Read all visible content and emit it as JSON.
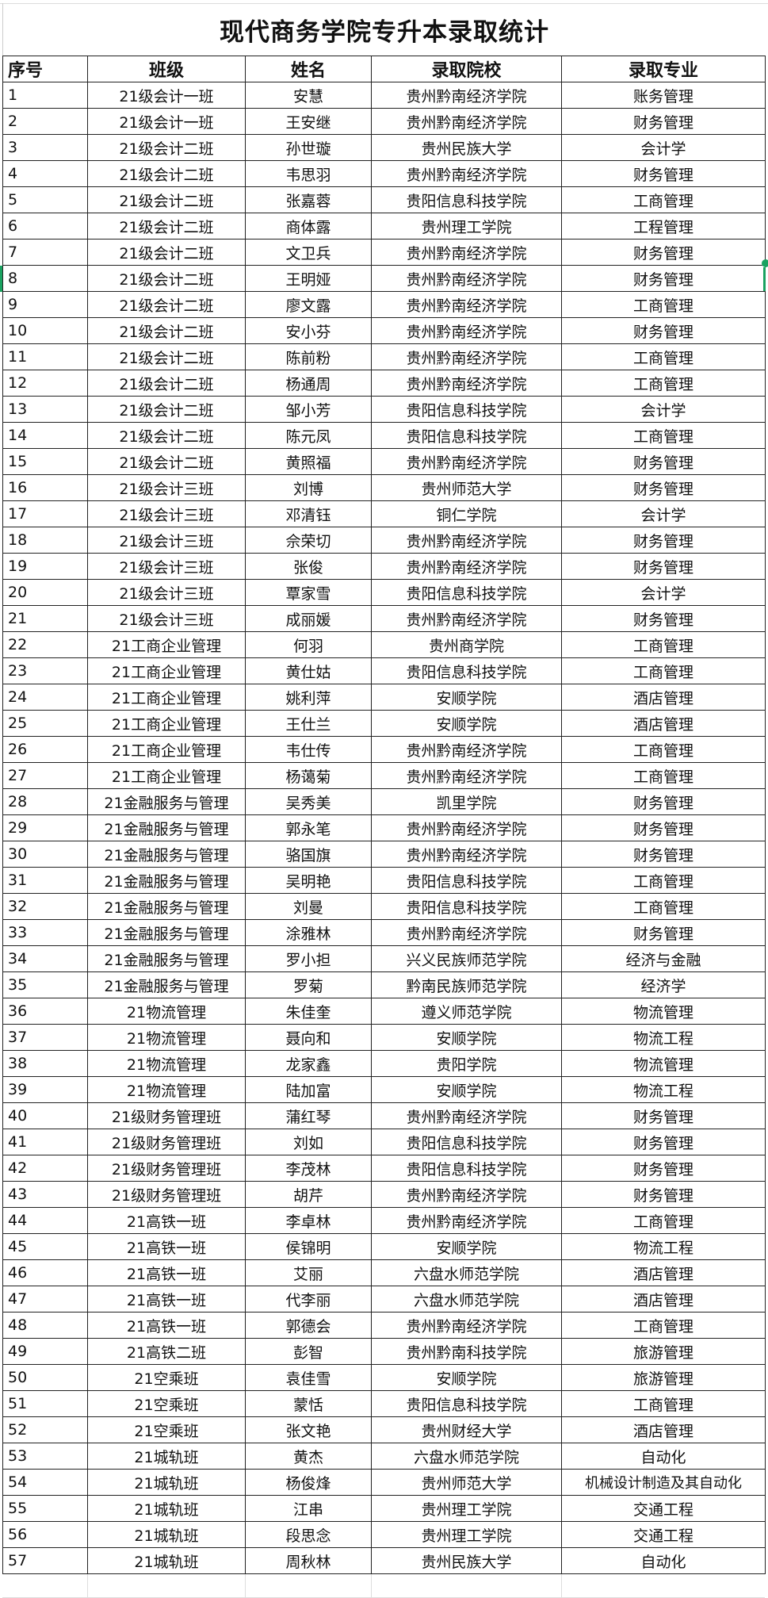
{
  "title": "现代商务学院专升本录取统计",
  "headers": [
    "序号",
    "班级",
    "姓名",
    "录取院校",
    "录取专业"
  ],
  "accent_color": "#1aa260",
  "rows": [
    [
      "1",
      "21级会计一班",
      "安慧",
      "贵州黔南经济学院",
      "账务管理"
    ],
    [
      "2",
      "21级会计一班",
      "王安继",
      "贵州黔南经济学院",
      "财务管理"
    ],
    [
      "3",
      "21级会计二班",
      "孙世璇",
      "贵州民族大学",
      "会计学"
    ],
    [
      "4",
      "21级会计二班",
      "韦思羽",
      "贵州黔南经济学院",
      "财务管理"
    ],
    [
      "5",
      "21级会计二班",
      "张嘉蓉",
      "贵阳信息科技学院",
      "工商管理"
    ],
    [
      "6",
      "21级会计二班",
      "商体露",
      "贵州理工学院",
      "工程管理"
    ],
    [
      "7",
      "21级会计二班",
      "文卫兵",
      "贵州黔南经济学院",
      "财务管理"
    ],
    [
      "8",
      "21级会计二班",
      "王明娅",
      "贵州黔南经济学院",
      "财务管理"
    ],
    [
      "9",
      "21级会计二班",
      "廖文露",
      "贵州黔南经济学院",
      "工商管理"
    ],
    [
      "10",
      "21级会计二班",
      "安小芬",
      "贵州黔南经济学院",
      "财务管理"
    ],
    [
      "11",
      "21级会计二班",
      "陈前粉",
      "贵州黔南经济学院",
      "工商管理"
    ],
    [
      "12",
      "21级会计二班",
      "杨通周",
      "贵州黔南经济学院",
      "工商管理"
    ],
    [
      "13",
      "21级会计二班",
      "邹小芳",
      "贵阳信息科技学院",
      "会计学"
    ],
    [
      "14",
      "21级会计二班",
      "陈元凤",
      "贵阳信息科技学院",
      "工商管理"
    ],
    [
      "15",
      "21级会计二班",
      "黄照福",
      "贵州黔南经济学院",
      "财务管理"
    ],
    [
      "16",
      "21级会计三班",
      "刘博",
      "贵州师范大学",
      "财务管理"
    ],
    [
      "17",
      "21级会计三班",
      "邓清钰",
      "铜仁学院",
      "会计学"
    ],
    [
      "18",
      "21级会计三班",
      "佘荣切",
      "贵州黔南经济学院",
      "财务管理"
    ],
    [
      "19",
      "21级会计三班",
      "张俊",
      "贵州黔南经济学院",
      "财务管理"
    ],
    [
      "20",
      "21级会计三班",
      "覃家雪",
      "贵阳信息科技学院",
      "会计学"
    ],
    [
      "21",
      "21级会计三班",
      "成丽媛",
      "贵州黔南经济学院",
      "财务管理"
    ],
    [
      "22",
      "21工商企业管理",
      "何羽",
      "贵州商学院",
      "工商管理"
    ],
    [
      "23",
      "21工商企业管理",
      "黄仕姑",
      "贵阳信息科技学院",
      "工商管理"
    ],
    [
      "24",
      "21工商企业管理",
      "姚利萍",
      "安顺学院",
      "酒店管理"
    ],
    [
      "25",
      "21工商企业管理",
      "王仕兰",
      "安顺学院",
      "酒店管理"
    ],
    [
      "26",
      "21工商企业管理",
      "韦仕传",
      "贵州黔南经济学院",
      "工商管理"
    ],
    [
      "27",
      "21工商企业管理",
      "杨蔼菊",
      "贵州黔南经济学院",
      "工商管理"
    ],
    [
      "28",
      "21金融服务与管理",
      "吴秀美",
      "凯里学院",
      "财务管理"
    ],
    [
      "29",
      "21金融服务与管理",
      "郭永笔",
      "贵州黔南经济学院",
      "财务管理"
    ],
    [
      "30",
      "21金融服务与管理",
      "骆国旗",
      "贵州黔南经济学院",
      "财务管理"
    ],
    [
      "31",
      "21金融服务与管理",
      "吴明艳",
      "贵阳信息科技学院",
      "工商管理"
    ],
    [
      "32",
      "21金融服务与管理",
      "刘曼",
      "贵阳信息科技学院",
      "工商管理"
    ],
    [
      "33",
      "21金融服务与管理",
      "涂雅林",
      "贵州黔南经济学院",
      "财务管理"
    ],
    [
      "34",
      "21金融服务与管理",
      "罗小担",
      "兴义民族师范学院",
      "经济与金融"
    ],
    [
      "35",
      "21金融服务与管理",
      "罗菊",
      "黔南民族师范学院",
      "经济学"
    ],
    [
      "36",
      "21物流管理",
      "朱佳奎",
      "遵义师范学院",
      "物流管理"
    ],
    [
      "37",
      "21物流管理",
      "聂向和",
      "安顺学院",
      "物流工程"
    ],
    [
      "38",
      "21物流管理",
      "龙家鑫",
      "贵阳学院",
      "物流管理"
    ],
    [
      "39",
      "21物流管理",
      "陆加富",
      "安顺学院",
      "物流工程"
    ],
    [
      "40",
      "21级财务管理班",
      "蒲红琴",
      "贵州黔南经济学院",
      "财务管理"
    ],
    [
      "41",
      "21级财务管理班",
      "刘如",
      "贵阳信息科技学院",
      "财务管理"
    ],
    [
      "42",
      "21级财务管理班",
      "李茂林",
      "贵阳信息科技学院",
      "财务管理"
    ],
    [
      "43",
      "21级财务管理班",
      "胡芹",
      "贵州黔南经济学院",
      "财务管理"
    ],
    [
      "44",
      "21高铁一班",
      "李卓林",
      "贵州黔南经济学院",
      "工商管理"
    ],
    [
      "45",
      "21高铁一班",
      "侯锦明",
      "安顺学院",
      "物流工程"
    ],
    [
      "46",
      "21高铁一班",
      "艾丽",
      "六盘水师范学院",
      "酒店管理"
    ],
    [
      "47",
      "21高铁一班",
      "代李丽",
      "六盘水师范学院",
      "酒店管理"
    ],
    [
      "48",
      "21高铁一班",
      "郭德会",
      "贵州黔南经济学院",
      "工商管理"
    ],
    [
      "49",
      "21高铁二班",
      "彭智",
      "贵州黔南科技学院",
      "旅游管理"
    ],
    [
      "50",
      "21空乘班",
      "袁佳雪",
      "安顺学院",
      "旅游管理"
    ],
    [
      "51",
      "21空乘班",
      "蒙恬",
      "贵阳信息科技学院",
      "工商管理"
    ],
    [
      "52",
      "21空乘班",
      "张文艳",
      "贵州财经大学",
      "酒店管理"
    ],
    [
      "53",
      "21城轨班",
      "黄杰",
      "六盘水师范学院",
      "自动化"
    ],
    [
      "54",
      "21城轨班",
      "杨俊烽",
      "贵州师范大学",
      "机械设计制造及其自动化"
    ],
    [
      "55",
      "21城轨班",
      "江串",
      "贵州理工学院",
      "交通工程"
    ],
    [
      "56",
      "21城轨班",
      "段思念",
      "贵州理工学院",
      "交通工程"
    ],
    [
      "57",
      "21城轨班",
      "周秋林",
      "贵州民族大学",
      "自动化"
    ]
  ]
}
